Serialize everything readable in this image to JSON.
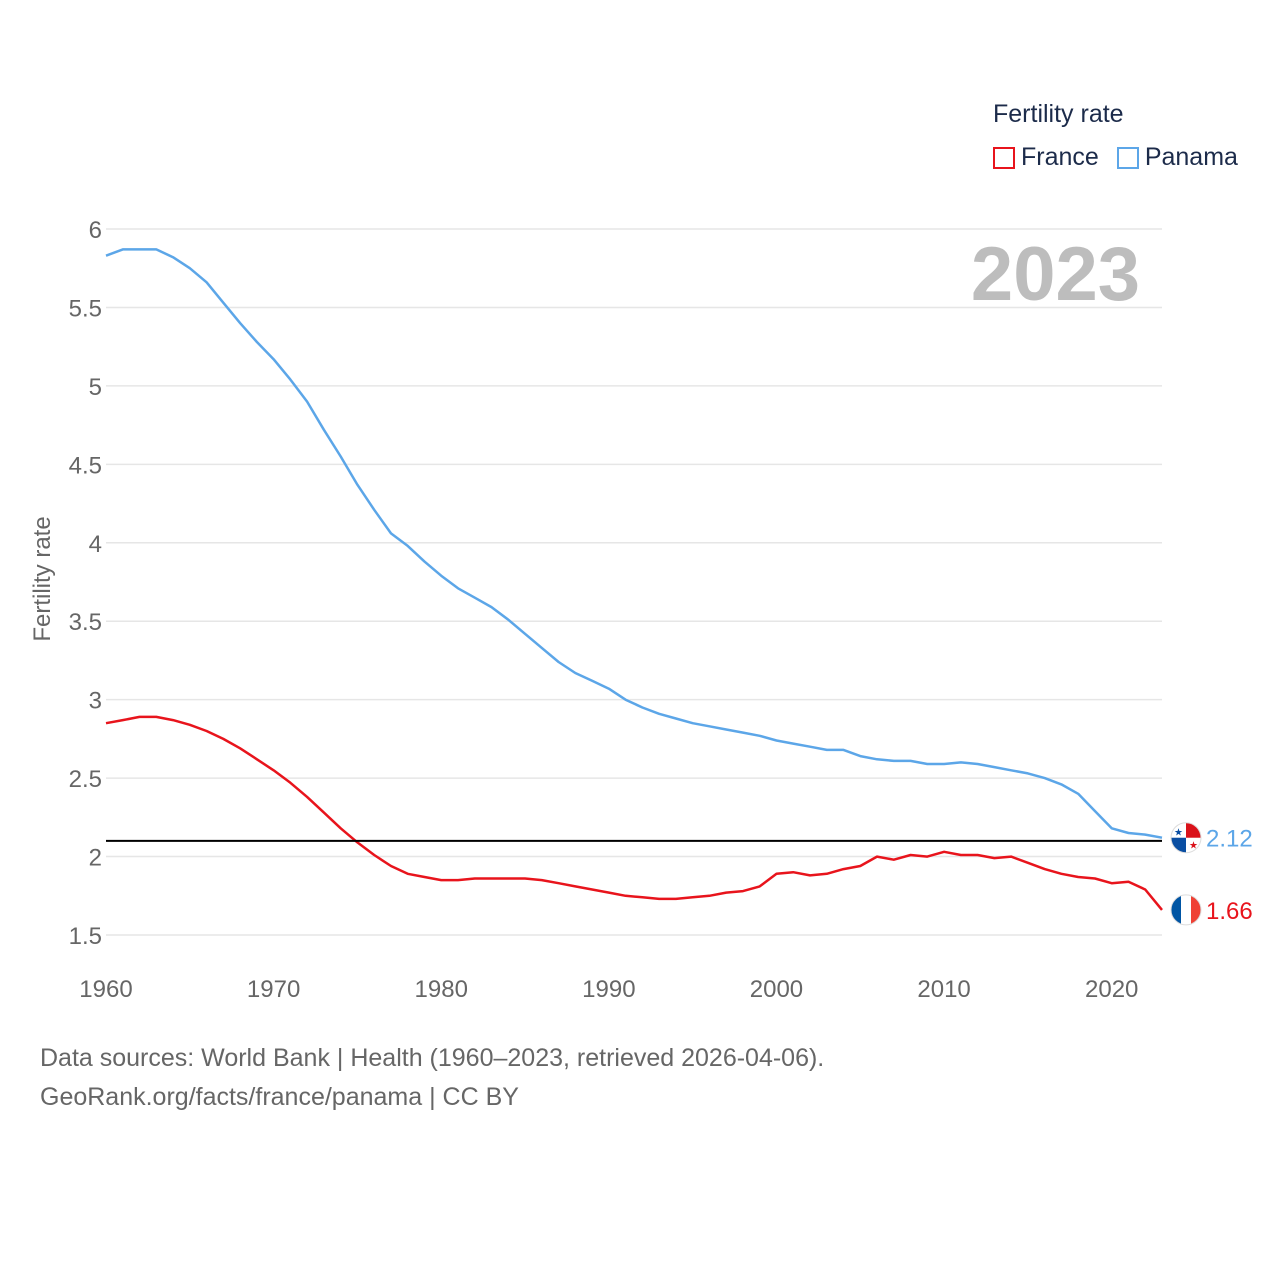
{
  "chart_data": {
    "type": "line",
    "title": "",
    "year_label": "2023",
    "legend_title": "Fertility rate",
    "ylabel": "Fertility rate",
    "xlabel": "",
    "xlim": [
      1960,
      2023
    ],
    "ylim": [
      1.5,
      6
    ],
    "x_ticks": [
      1960,
      1970,
      1980,
      1990,
      2000,
      2010,
      2020
    ],
    "y_ticks": [
      1.5,
      2,
      2.5,
      3,
      3.5,
      4,
      4.5,
      5,
      5.5,
      6
    ],
    "y_tick_labels": [
      "1.5",
      "2",
      "2.5",
      "3",
      "3.5",
      "4",
      "4.5",
      "5",
      "5.5",
      "6"
    ],
    "reference_line": 2.1,
    "x": [
      1960,
      1961,
      1962,
      1963,
      1964,
      1965,
      1966,
      1967,
      1968,
      1969,
      1970,
      1971,
      1972,
      1973,
      1974,
      1975,
      1976,
      1977,
      1978,
      1979,
      1980,
      1981,
      1982,
      1983,
      1984,
      1985,
      1986,
      1987,
      1988,
      1989,
      1990,
      1991,
      1992,
      1993,
      1994,
      1995,
      1996,
      1997,
      1998,
      1999,
      2000,
      2001,
      2002,
      2003,
      2004,
      2005,
      2006,
      2007,
      2008,
      2009,
      2010,
      2011,
      2012,
      2013,
      2014,
      2015,
      2016,
      2017,
      2018,
      2019,
      2020,
      2021,
      2022,
      2023
    ],
    "series": [
      {
        "name": "France",
        "color": "#e8141c",
        "end_label": "1.66",
        "values": [
          2.85,
          2.87,
          2.89,
          2.89,
          2.87,
          2.84,
          2.8,
          2.75,
          2.69,
          2.62,
          2.55,
          2.47,
          2.38,
          2.28,
          2.18,
          2.09,
          2.01,
          1.94,
          1.89,
          1.87,
          1.85,
          1.85,
          1.86,
          1.86,
          1.86,
          1.86,
          1.85,
          1.83,
          1.81,
          1.79,
          1.77,
          1.75,
          1.74,
          1.73,
          1.73,
          1.74,
          1.75,
          1.77,
          1.78,
          1.81,
          1.89,
          1.9,
          1.88,
          1.89,
          1.92,
          1.94,
          2.0,
          1.98,
          2.01,
          2.0,
          2.03,
          2.01,
          2.01,
          1.99,
          2.0,
          1.96,
          1.92,
          1.89,
          1.87,
          1.86,
          1.83,
          1.84,
          1.79,
          1.66
        ]
      },
      {
        "name": "Panama",
        "color": "#5ca6e8",
        "end_label": "2.12",
        "values": [
          5.83,
          5.87,
          5.87,
          5.87,
          5.82,
          5.75,
          5.66,
          5.53,
          5.4,
          5.28,
          5.17,
          5.04,
          4.9,
          4.72,
          4.55,
          4.37,
          4.21,
          4.06,
          3.98,
          3.88,
          3.79,
          3.71,
          3.65,
          3.59,
          3.51,
          3.42,
          3.33,
          3.24,
          3.17,
          3.12,
          3.07,
          3.0,
          2.95,
          2.91,
          2.88,
          2.85,
          2.83,
          2.81,
          2.79,
          2.77,
          2.74,
          2.72,
          2.7,
          2.68,
          2.68,
          2.64,
          2.62,
          2.61,
          2.61,
          2.59,
          2.59,
          2.6,
          2.59,
          2.57,
          2.55,
          2.53,
          2.5,
          2.46,
          2.4,
          2.29,
          2.18,
          2.15,
          2.14,
          2.12
        ]
      }
    ]
  },
  "footer": {
    "source_line": "Data sources: World Bank | Health (1960–2023, retrieved 2026-04-06).",
    "attribution": "GeoRank.org/facts/france/panama | CC BY"
  },
  "flags": {
    "france_icon": "flag-france-icon",
    "panama_icon": "flag-panama-icon"
  }
}
